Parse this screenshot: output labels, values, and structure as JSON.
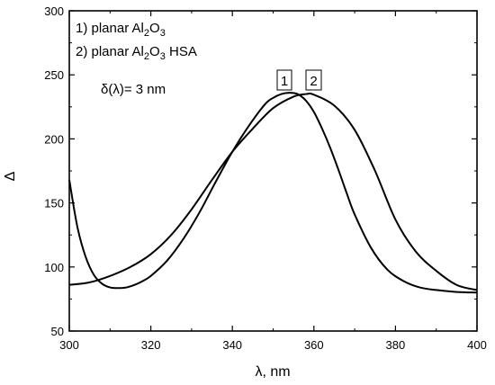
{
  "chart_data": {
    "type": "line",
    "xlabel": "λ, nm",
    "ylabel": "Δ",
    "xlim": [
      300,
      400
    ],
    "ylim": [
      50,
      300
    ],
    "xticks": [
      300,
      320,
      340,
      360,
      380,
      400
    ],
    "yticks": [
      50,
      100,
      150,
      200,
      250,
      300
    ],
    "grid": false,
    "legend": {
      "placement": "top-left",
      "entries": [
        {
          "prefix": "1) planar Al",
          "sub1": "2",
          "mid": "O",
          "sub2": "3",
          "suffix": ""
        },
        {
          "prefix": "2) planar Al",
          "sub1": "2",
          "mid": "O",
          "sub2": "3",
          "suffix": " HSA"
        }
      ]
    },
    "annotation": "δ(λ)= 3 nm",
    "series": [
      {
        "label": "1",
        "x": [
          300,
          302,
          304,
          306,
          308,
          310,
          312,
          314,
          316,
          318,
          320,
          324,
          328,
          332,
          336,
          340,
          344,
          348,
          350,
          352,
          354,
          356,
          358,
          360,
          362,
          364,
          366,
          368,
          370,
          374,
          378,
          382,
          386,
          390,
          395,
          400
        ],
        "y": [
          168,
          131,
          108,
          94,
          87,
          84,
          83.5,
          84,
          86,
          89,
          93,
          105,
          122,
          143,
          167,
          190,
          210,
          227,
          232,
          235,
          236,
          235,
          230,
          221,
          208,
          193,
          176,
          158,
          141,
          115,
          98,
          89,
          84,
          82,
          80.5,
          80
        ]
      },
      {
        "label": "2",
        "x": [
          300,
          305,
          310,
          315,
          320,
          325,
          330,
          335,
          340,
          345,
          350,
          355,
          358,
          360,
          365,
          370,
          375,
          380,
          385,
          390,
          395,
          400
        ],
        "y": [
          86,
          88,
          93,
          100,
          110,
          125,
          145,
          168,
          190,
          208,
          224,
          233,
          235,
          234.5,
          226,
          207,
          175,
          137,
          112,
          97,
          86,
          82
        ]
      }
    ]
  }
}
